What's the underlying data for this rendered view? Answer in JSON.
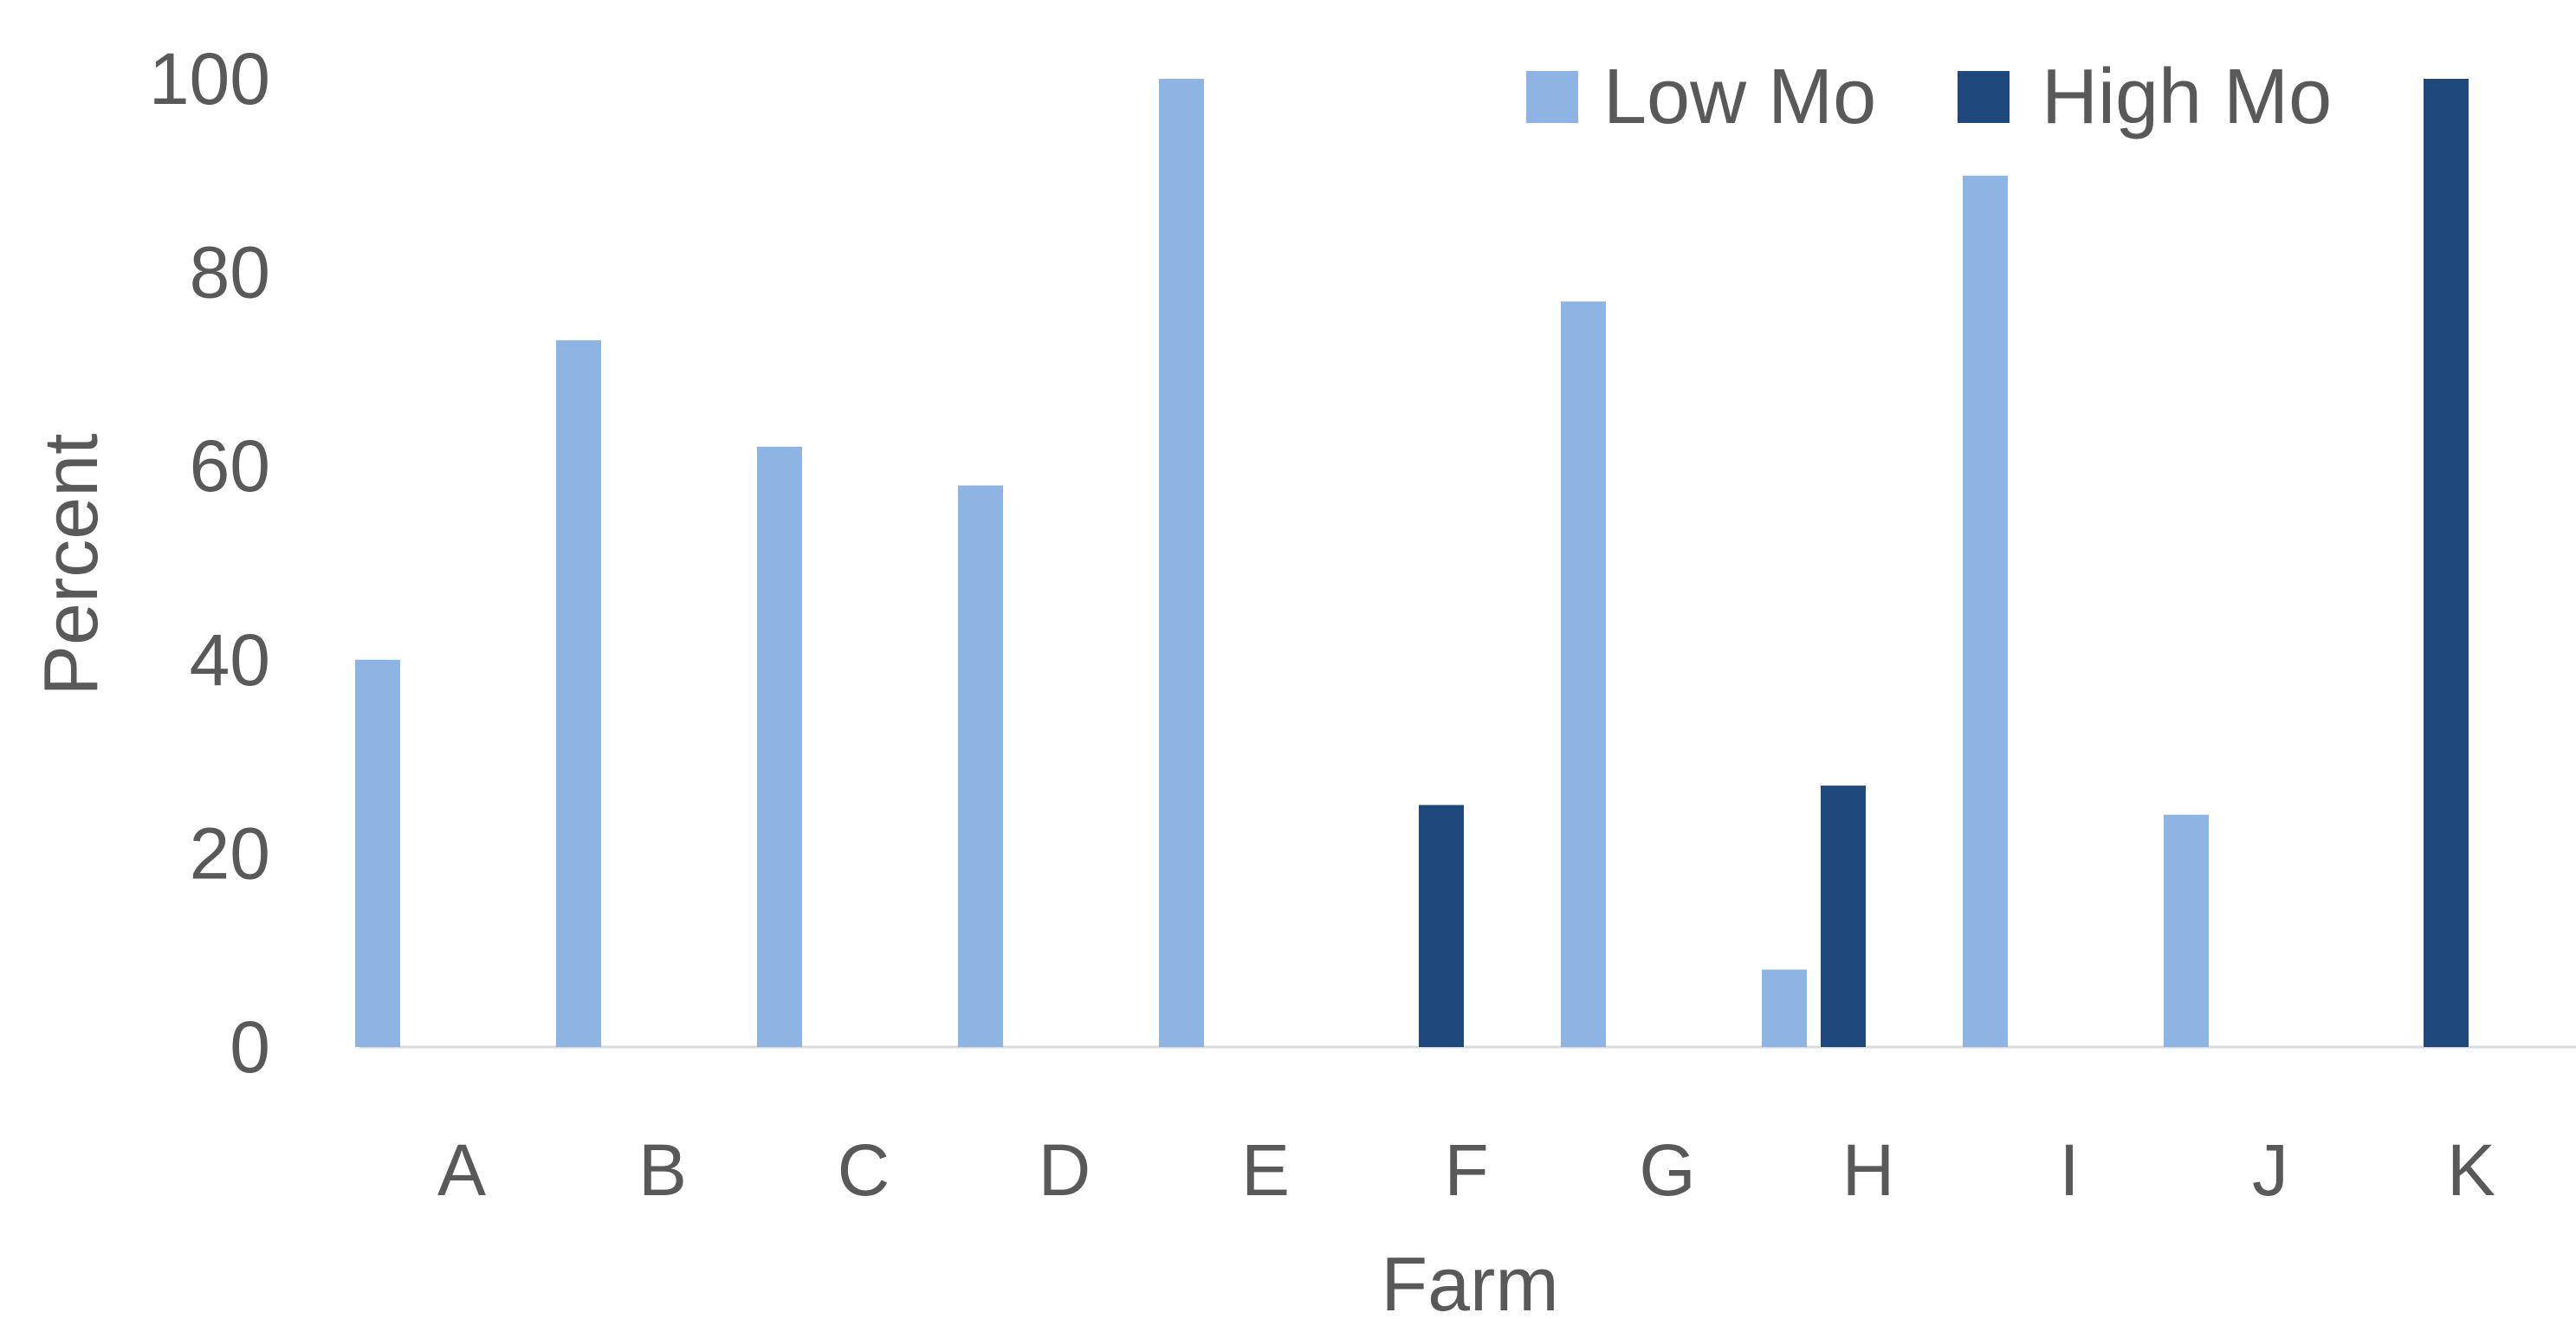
{
  "chart_data": {
    "type": "bar",
    "title": "",
    "xlabel": "Farm",
    "ylabel": "Percent",
    "ylim": [
      0,
      100
    ],
    "yticks": [
      0,
      20,
      40,
      60,
      80,
      100
    ],
    "categories": [
      "A",
      "B",
      "C",
      "D",
      "E",
      "F",
      "G",
      "H",
      "I",
      "J",
      "K"
    ],
    "series": [
      {
        "name": "Low Mo",
        "color": "#8EB4E3",
        "values": [
          40,
          73,
          62,
          58,
          100,
          0,
          77,
          8,
          90,
          24,
          0
        ]
      },
      {
        "name": "High Mo",
        "color": "#1F497D",
        "values": [
          0,
          0,
          0,
          0,
          0,
          25,
          0,
          27,
          0,
          0,
          100
        ]
      }
    ],
    "legend_position": "top-right",
    "grid": false
  }
}
